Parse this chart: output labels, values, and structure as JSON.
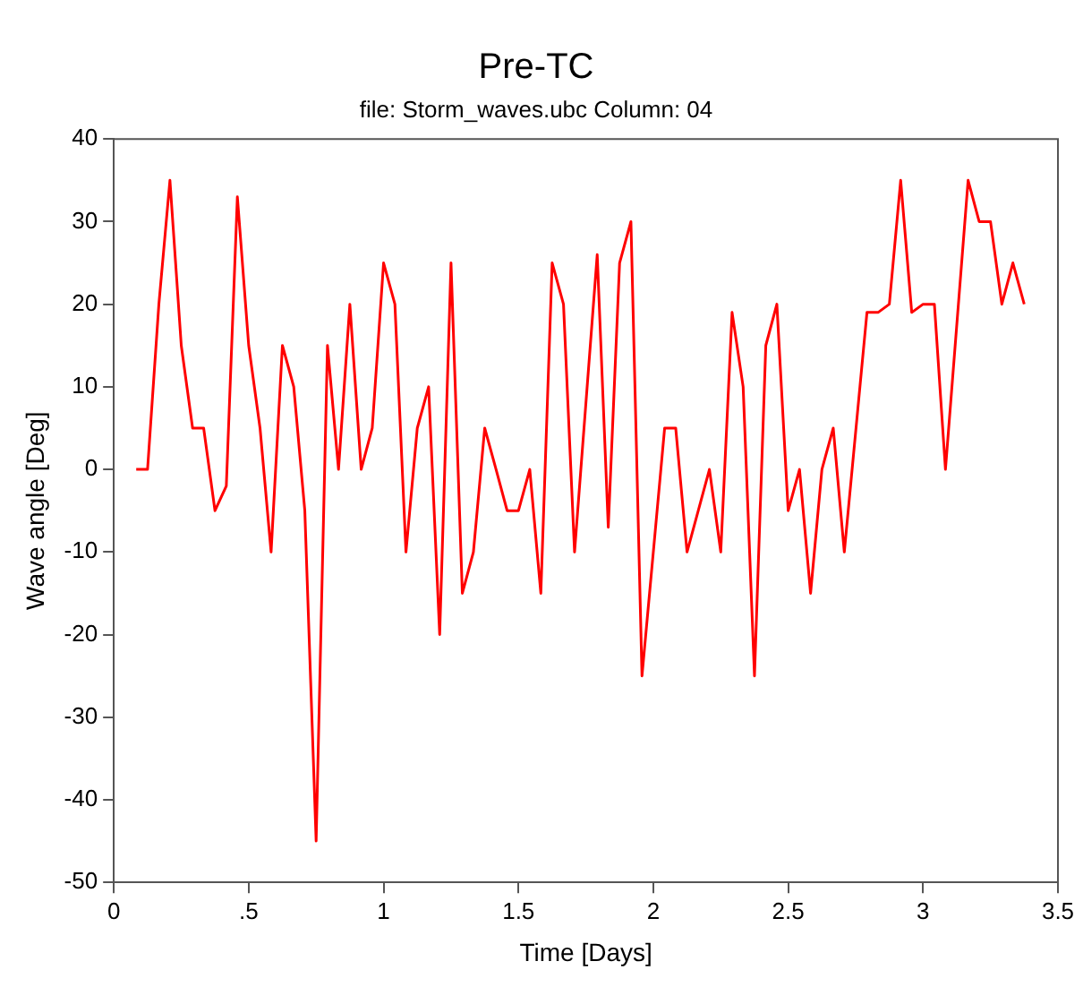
{
  "chart_data": {
    "type": "line",
    "title": "Pre-TC",
    "subtitle": "file: Storm_waves.ubc Column: 04",
    "xlabel": "Time [Days]",
    "ylabel": "Wave angle [Deg]",
    "xlim": [
      0,
      3.5
    ],
    "xticks": [
      0,
      {
        "value": 0.5,
        "label": ".5"
      },
      1,
      1.5,
      2,
      2.5,
      3,
      3.5
    ],
    "ylim": [
      -50,
      40
    ],
    "yticks": [
      -50,
      -40,
      -30,
      -20,
      -10,
      0,
      10,
      20,
      30,
      40
    ],
    "grid": false,
    "legend": false,
    "marker": "none",
    "line_style": "solid",
    "series": [
      {
        "color": "#ff0000",
        "x": [
          0.083,
          0.125,
          0.167,
          0.208,
          0.25,
          0.292,
          0.333,
          0.375,
          0.417,
          0.458,
          0.5,
          0.542,
          0.583,
          0.625,
          0.667,
          0.708,
          0.75,
          0.792,
          0.833,
          0.875,
          0.917,
          0.958,
          1.0,
          1.042,
          1.083,
          1.125,
          1.167,
          1.208,
          1.25,
          1.292,
          1.333,
          1.375,
          1.417,
          1.458,
          1.5,
          1.542,
          1.583,
          1.625,
          1.667,
          1.708,
          1.792,
          1.833,
          1.875,
          1.917,
          1.958,
          2.042,
          2.083,
          2.125,
          2.208,
          2.25,
          2.292,
          2.333,
          2.375,
          2.417,
          2.458,
          2.5,
          2.542,
          2.583,
          2.625,
          2.667,
          2.708,
          2.792,
          2.833,
          2.875,
          2.917,
          2.958,
          3.0,
          3.042,
          3.083,
          3.167,
          3.208,
          3.25,
          3.292,
          3.333,
          3.375
        ],
        "values": [
          0,
          0,
          20,
          35,
          15,
          5,
          5,
          -5,
          -2,
          33,
          15,
          5,
          -10,
          15,
          10,
          -5,
          -45,
          15,
          0,
          20,
          0,
          5,
          25,
          20,
          -10,
          5,
          10,
          -20,
          25,
          -15,
          -10,
          5,
          0,
          -5,
          -5,
          0,
          -15,
          25,
          20,
          -10,
          26,
          -7,
          25,
          30,
          -25,
          5,
          5,
          -10,
          0,
          -10,
          19,
          10,
          -25,
          15,
          20,
          -5,
          0,
          -15,
          0,
          5,
          -10,
          19,
          19,
          20,
          35,
          19,
          20,
          20,
          0,
          35,
          30,
          30,
          20,
          25,
          20
        ]
      }
    ]
  }
}
